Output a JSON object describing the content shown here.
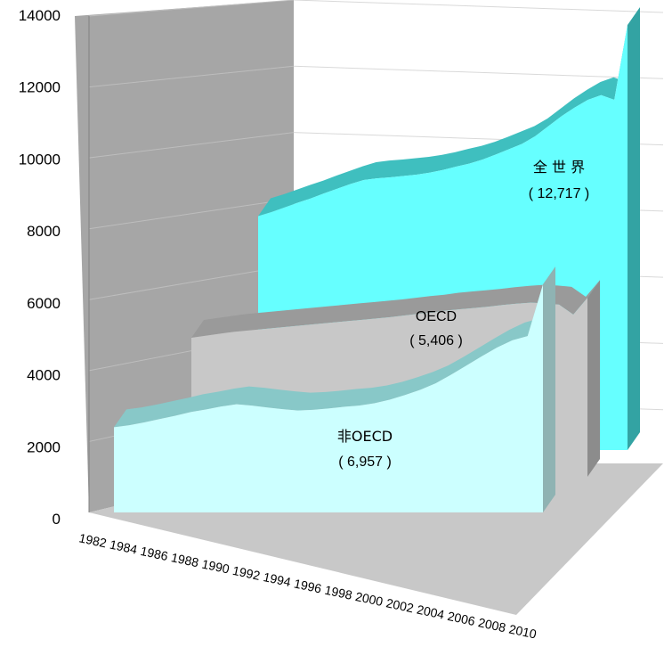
{
  "chart_data": {
    "type": "area",
    "chart_3d": true,
    "grid": true,
    "legend": "none",
    "title": "",
    "xlabel": "",
    "ylabel": "",
    "ylim": [
      0,
      14000
    ],
    "yticks": [
      "0",
      "2000",
      "4000",
      "6000",
      "8000",
      "10000",
      "12000",
      "14000"
    ],
    "x": [
      1982,
      1983,
      1984,
      1985,
      1986,
      1987,
      1988,
      1989,
      1990,
      1991,
      1992,
      1993,
      1994,
      1995,
      1996,
      1997,
      1998,
      1999,
      2000,
      2001,
      2002,
      2003,
      2004,
      2005,
      2006,
      2007,
      2008,
      2009,
      2010
    ],
    "xticks": [
      "1982",
      "1984",
      "1986",
      "1988",
      "1990",
      "1992",
      "1994",
      "1996",
      "1998",
      "2000",
      "2002",
      "2004",
      "2006",
      "2008",
      "2010"
    ],
    "series": [
      {
        "key": "nonoecd",
        "label": "非OECD",
        "value_label": "( 6,957 )",
        "color": "#ccffff",
        "values": [
          2600,
          2660,
          2750,
          2850,
          2950,
          3060,
          3140,
          3230,
          3300,
          3260,
          3200,
          3150,
          3110,
          3130,
          3170,
          3220,
          3260,
          3330,
          3440,
          3580,
          3740,
          3940,
          4200,
          4480,
          4760,
          5030,
          5250,
          5380,
          6957
        ]
      },
      {
        "key": "oecd",
        "label": "OECD",
        "value_label": "( 5,406 )",
        "color": "#c8c8c8",
        "values": [
          4200,
          4260,
          4320,
          4380,
          4420,
          4460,
          4500,
          4540,
          4580,
          4620,
          4660,
          4700,
          4740,
          4780,
          4820,
          4870,
          4920,
          4960,
          5020,
          5060,
          5100,
          5140,
          5190,
          5230,
          5260,
          5240,
          5200,
          4900,
          5406
        ]
      },
      {
        "key": "world",
        "label": "全 世 界",
        "value_label": "( 12,717 )",
        "color": "#66ffff",
        "values": [
          7000,
          7120,
          7260,
          7400,
          7530,
          7680,
          7820,
          7960,
          8080,
          8130,
          8160,
          8200,
          8240,
          8300,
          8380,
          8480,
          8570,
          8690,
          8840,
          9000,
          9160,
          9390,
          9690,
          9990,
          10250,
          10480,
          10620,
          10480,
          12717
        ]
      }
    ]
  }
}
